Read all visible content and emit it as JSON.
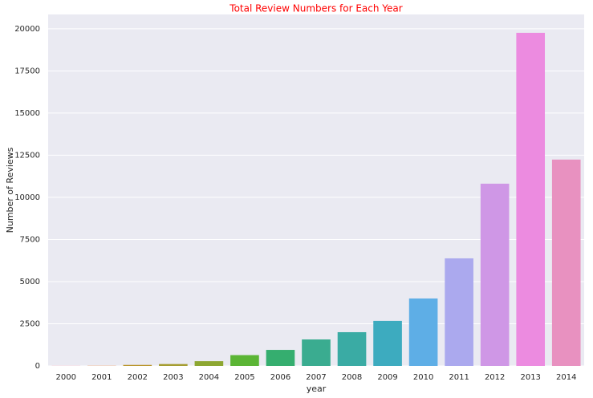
{
  "chart_data": {
    "type": "bar",
    "title": "Total Review Numbers for Each Year",
    "x_label": "year",
    "y_label": "Number of Reviews",
    "categories": [
      "2000",
      "2001",
      "2002",
      "2003",
      "2004",
      "2005",
      "2006",
      "2007",
      "2008",
      "2009",
      "2010",
      "2011",
      "2012",
      "2013",
      "2014"
    ],
    "values": [
      5,
      10,
      60,
      110,
      280,
      640,
      950,
      1570,
      2000,
      2670,
      4000,
      6380,
      10810,
      19760,
      12240
    ],
    "colors": [
      "#f77189",
      "#e8833a",
      "#bb9832",
      "#a59d31",
      "#8da732",
      "#5bb535",
      "#35ae6f",
      "#3aac90",
      "#3aaba4",
      "#3dabbf",
      "#5eaee6",
      "#aba9ee",
      "#cf97e6",
      "#ec8be0",
      "#e891c0"
    ],
    "ylim": [
      0,
      20850
    ],
    "yticks": [
      0,
      2500,
      5000,
      7500,
      10000,
      12500,
      15000,
      17500,
      20000
    ],
    "grid": true
  }
}
